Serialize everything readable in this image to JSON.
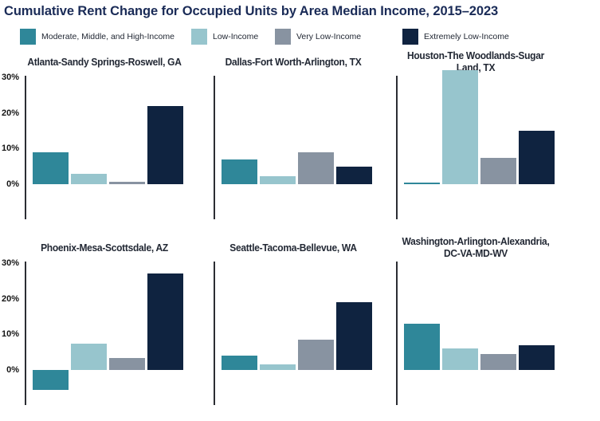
{
  "title": "Cumulative Rent Change for Occupied Units by Area Median Income, 2015–2023",
  "legend": [
    {
      "label": "Moderate, Middle, and High-Income",
      "color": "#2F8799"
    },
    {
      "label": "Low-Income",
      "color": "#97C5CD"
    },
    {
      "label": "Very Low-Income",
      "color": "#8893A1"
    },
    {
      "label": "Extremely Low-Income",
      "color": "#0F2340"
    }
  ],
  "colors": {
    "title_navy": "#1A2B57",
    "text_dark": "#222834",
    "axis_line": "#2B2D33",
    "background": "#FFFFFF"
  },
  "chart_data": {
    "type": "bar",
    "title": "Cumulative Rent Change for Occupied Units by Area Median Income, 2015–2023",
    "categories": [
      "Moderate, Middle, and High-Income",
      "Low-Income",
      "Very Low-Income",
      "Extremely Low-Income"
    ],
    "value_unit": "percent",
    "ylim": [
      -10,
      30
    ],
    "y_ticks": [
      "30%",
      "20%",
      "10%",
      "0%"
    ],
    "y_tick_values": [
      30,
      20,
      10,
      0
    ],
    "grid": false,
    "legend_position": "top",
    "charts": [
      {
        "title": "Atlanta-Sandy Springs-Roswell, GA",
        "values": [
          9,
          3,
          0.7,
          22
        ]
      },
      {
        "title": "Dallas-Fort Worth-Arlington, TX",
        "values": [
          7,
          2.3,
          9,
          5
        ]
      },
      {
        "title": "Houston-The Woodlands-Sugar Land, TX",
        "values": [
          0.3,
          32,
          7.5,
          15
        ]
      },
      {
        "title": "Phoenix-Mesa-Scottsdale, AZ",
        "values": [
          -5.5,
          7.5,
          3.3,
          27
        ]
      },
      {
        "title": "Seattle-Tacoma-Bellevue, WA",
        "values": [
          4,
          1.6,
          8.5,
          19
        ]
      },
      {
        "title": "Washington-Arlington-Alexandria,\nDC-VA-MD-WV",
        "values": [
          13,
          6,
          4.5,
          7
        ]
      }
    ]
  }
}
